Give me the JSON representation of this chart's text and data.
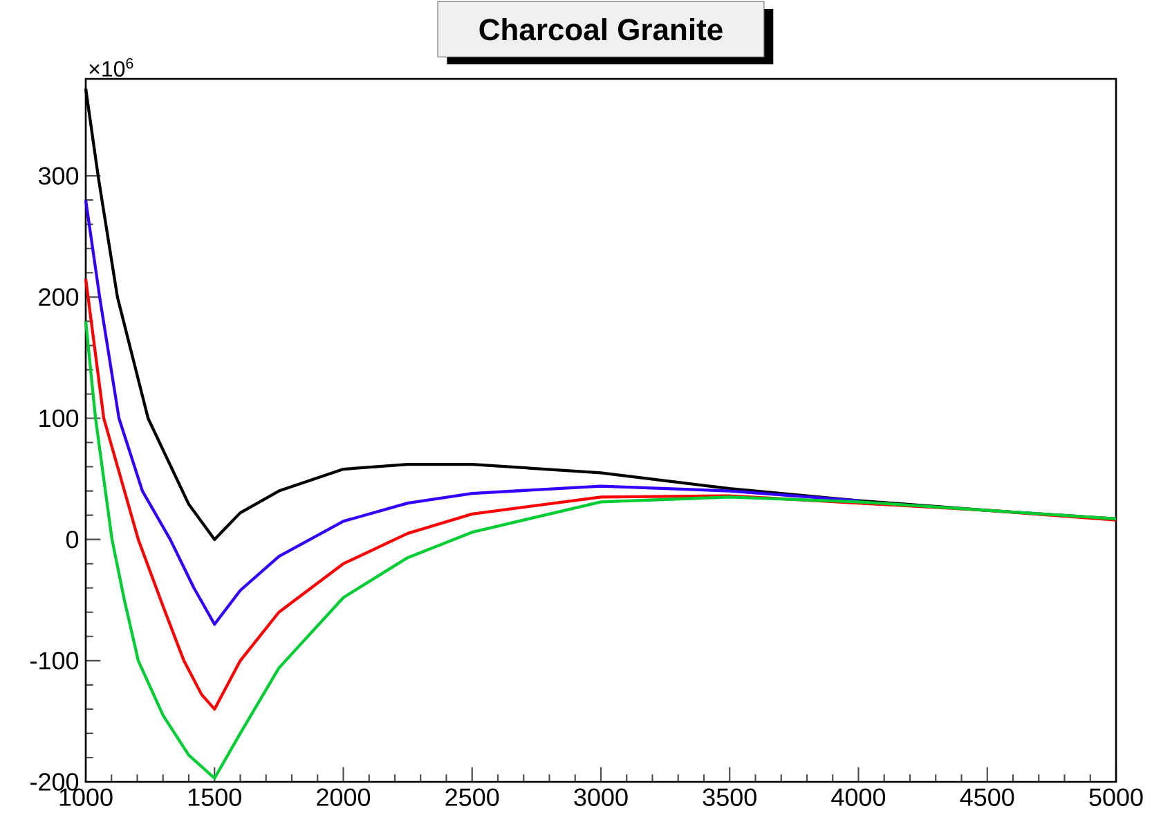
{
  "chart_data": {
    "type": "line",
    "title": "Charcoal Granite",
    "annotations": [
      "×10$^{6}$"
    ],
    "xlim": [
      1000,
      5000
    ],
    "ylim": [
      -200,
      380
    ],
    "xticks": [
      1000,
      1500,
      2000,
      2500,
      3000,
      3500,
      4000,
      4500,
      5000
    ],
    "yticks": [
      -200,
      -100,
      0,
      100,
      200,
      300
    ],
    "marker": "none",
    "line_style": "solid",
    "series": [
      {
        "color": "#000000",
        "x": [
          1000,
          1048,
          1123,
          1242,
          1400,
          1500,
          1600,
          1750,
          2000,
          2250,
          2500,
          3000,
          3500,
          4000,
          4500,
          5000
        ],
        "values": [
          372,
          300,
          200,
          100,
          29,
          0,
          22,
          40,
          58,
          62,
          62,
          55,
          42,
          32,
          24,
          17
        ]
      },
      {
        "color": "#3300ff",
        "x": [
          1000,
          1054,
          1129,
          1220,
          1328,
          1420,
          1500,
          1600,
          1750,
          2000,
          2250,
          2500,
          3000,
          3500,
          4000
        ],
        "values": [
          280,
          200,
          100,
          40,
          0,
          -40,
          -70,
          -42,
          -14,
          15,
          30,
          38,
          44,
          40,
          32
        ]
      },
      {
        "color": "#ff0000",
        "x": [
          1000,
          1070,
          1204,
          1300,
          1381,
          1450,
          1500,
          1600,
          1750,
          2000,
          2250,
          2500,
          3000,
          3500,
          4000,
          4500,
          5000
        ],
        "values": [
          215,
          100,
          0,
          -55,
          -100,
          -128,
          -140,
          -100,
          -60,
          -20,
          5,
          21,
          35,
          36,
          null,
          24,
          16
        ]
      },
      {
        "color": "#00cc33",
        "x": [
          1000,
          1038,
          1102,
          1150,
          1204,
          1300,
          1400,
          1500,
          1600,
          1750,
          2000,
          2250,
          2500,
          3000,
          3500,
          4000,
          4500,
          5000
        ],
        "values": [
          180,
          100,
          0,
          -50,
          -100,
          -145,
          -178,
          -197,
          -160,
          -106,
          -48,
          -15,
          6,
          31,
          35,
          31,
          24,
          17
        ]
      }
    ]
  }
}
